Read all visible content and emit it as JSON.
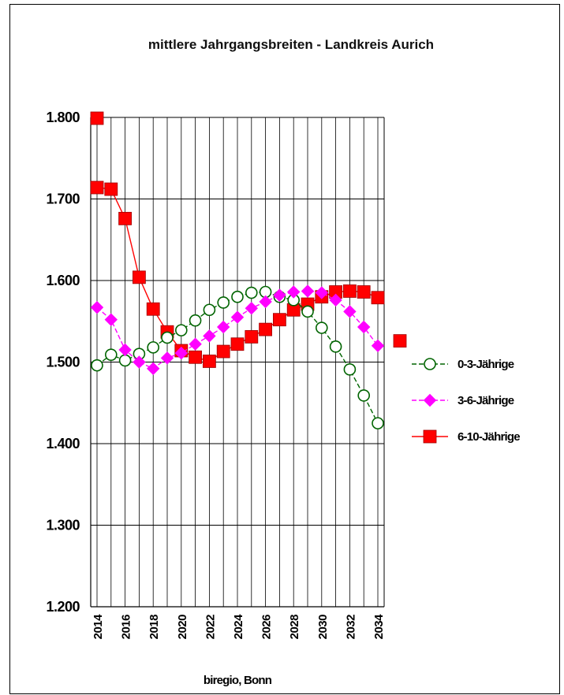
{
  "chart_data": {
    "type": "line",
    "title": "mittlere Jahrgangsbreiten - Landkreis Aurich",
    "xlabel": "",
    "ylabel": "",
    "credit": "biregio, Bonn",
    "ylim": [
      1200,
      1800
    ],
    "ytick_values": [
      1200,
      1300,
      1400,
      1500,
      1600,
      1700,
      1800
    ],
    "ytick_labels": [
      "1.200",
      "1.300",
      "1.400",
      "1.500",
      "1.600",
      "1.700",
      "1.800"
    ],
    "x": [
      2014,
      2015,
      2016,
      2017,
      2018,
      2019,
      2020,
      2021,
      2022,
      2023,
      2024,
      2025,
      2026,
      2027,
      2028,
      2029,
      2030,
      2031,
      2032,
      2033,
      2034
    ],
    "xtick_labels": [
      "2014",
      "2016",
      "2018",
      "2020",
      "2022",
      "2024",
      "2026",
      "2028",
      "2030",
      "2032",
      "2034"
    ],
    "xtick_values": [
      2014,
      2016,
      2018,
      2020,
      2022,
      2024,
      2026,
      2028,
      2030,
      2032,
      2034
    ],
    "grid": true,
    "legend_position": "right",
    "series": [
      {
        "name": "0-3-Jährige",
        "marker": "circle-open",
        "color": "#006400",
        "values": [
          1496,
          1509,
          1502,
          1510,
          1518,
          1530,
          1539,
          1551,
          1564,
          1573,
          1580,
          1585,
          1586,
          1580,
          1576,
          1562,
          1542,
          1519,
          1491,
          1459,
          1425
        ]
      },
      {
        "name": "3-6-Jährige",
        "marker": "diamond",
        "color": "#ff00ff",
        "values": [
          1567,
          1552,
          1515,
          1500,
          1492,
          1505,
          1511,
          1522,
          1532,
          1543,
          1555,
          1566,
          1574,
          1582,
          1586,
          1587,
          1585,
          1576,
          1562,
          1543,
          1520
        ]
      },
      {
        "name": "6-10-Jährige",
        "marker": "square",
        "color": "#ff0000",
        "values": [
          1714,
          1712,
          1676,
          1604,
          1565,
          1537,
          1514,
          1506,
          1501,
          1513,
          1522,
          1531,
          1540,
          1552,
          1564,
          1571,
          1580,
          1586,
          1587,
          1586,
          1579
        ]
      }
    ],
    "extra_marker": {
      "series": "6-10-Jährige",
      "x": 2014,
      "value": 1799
    },
    "stray_legend_marker": {
      "series": "6-10-Jährige",
      "value": 1526
    }
  }
}
